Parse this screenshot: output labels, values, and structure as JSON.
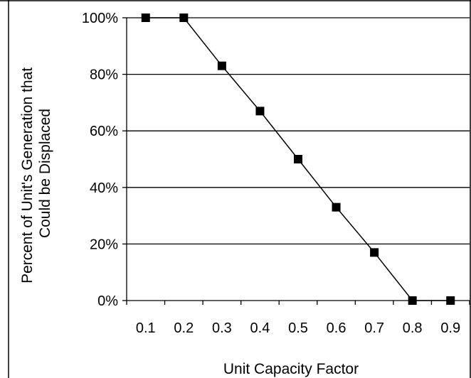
{
  "chart_data": {
    "type": "line",
    "title": "",
    "xlabel": "Unit Capacity Factor",
    "ylabel_lines": [
      "Percent of Unit's Generation that",
      "Could be Displaced"
    ],
    "x_ticks": [
      "0.1",
      "0.2",
      "0.3",
      "0.4",
      "0.5",
      "0.6",
      "0.7",
      "0.8",
      "0.9"
    ],
    "y_ticks": [
      "0%",
      "20%",
      "40%",
      "60%",
      "80%",
      "100%"
    ],
    "ylim": [
      0,
      100
    ],
    "grid": "horizontal",
    "legend": "none",
    "series": [
      {
        "x": [
          0.1,
          0.2,
          0.3,
          0.4,
          0.5,
          0.6,
          0.7,
          0.8,
          0.9
        ],
        "values": [
          100,
          100,
          83,
          67,
          50,
          33,
          17,
          0,
          0
        ],
        "marker": "square",
        "color": "#000000"
      }
    ]
  }
}
